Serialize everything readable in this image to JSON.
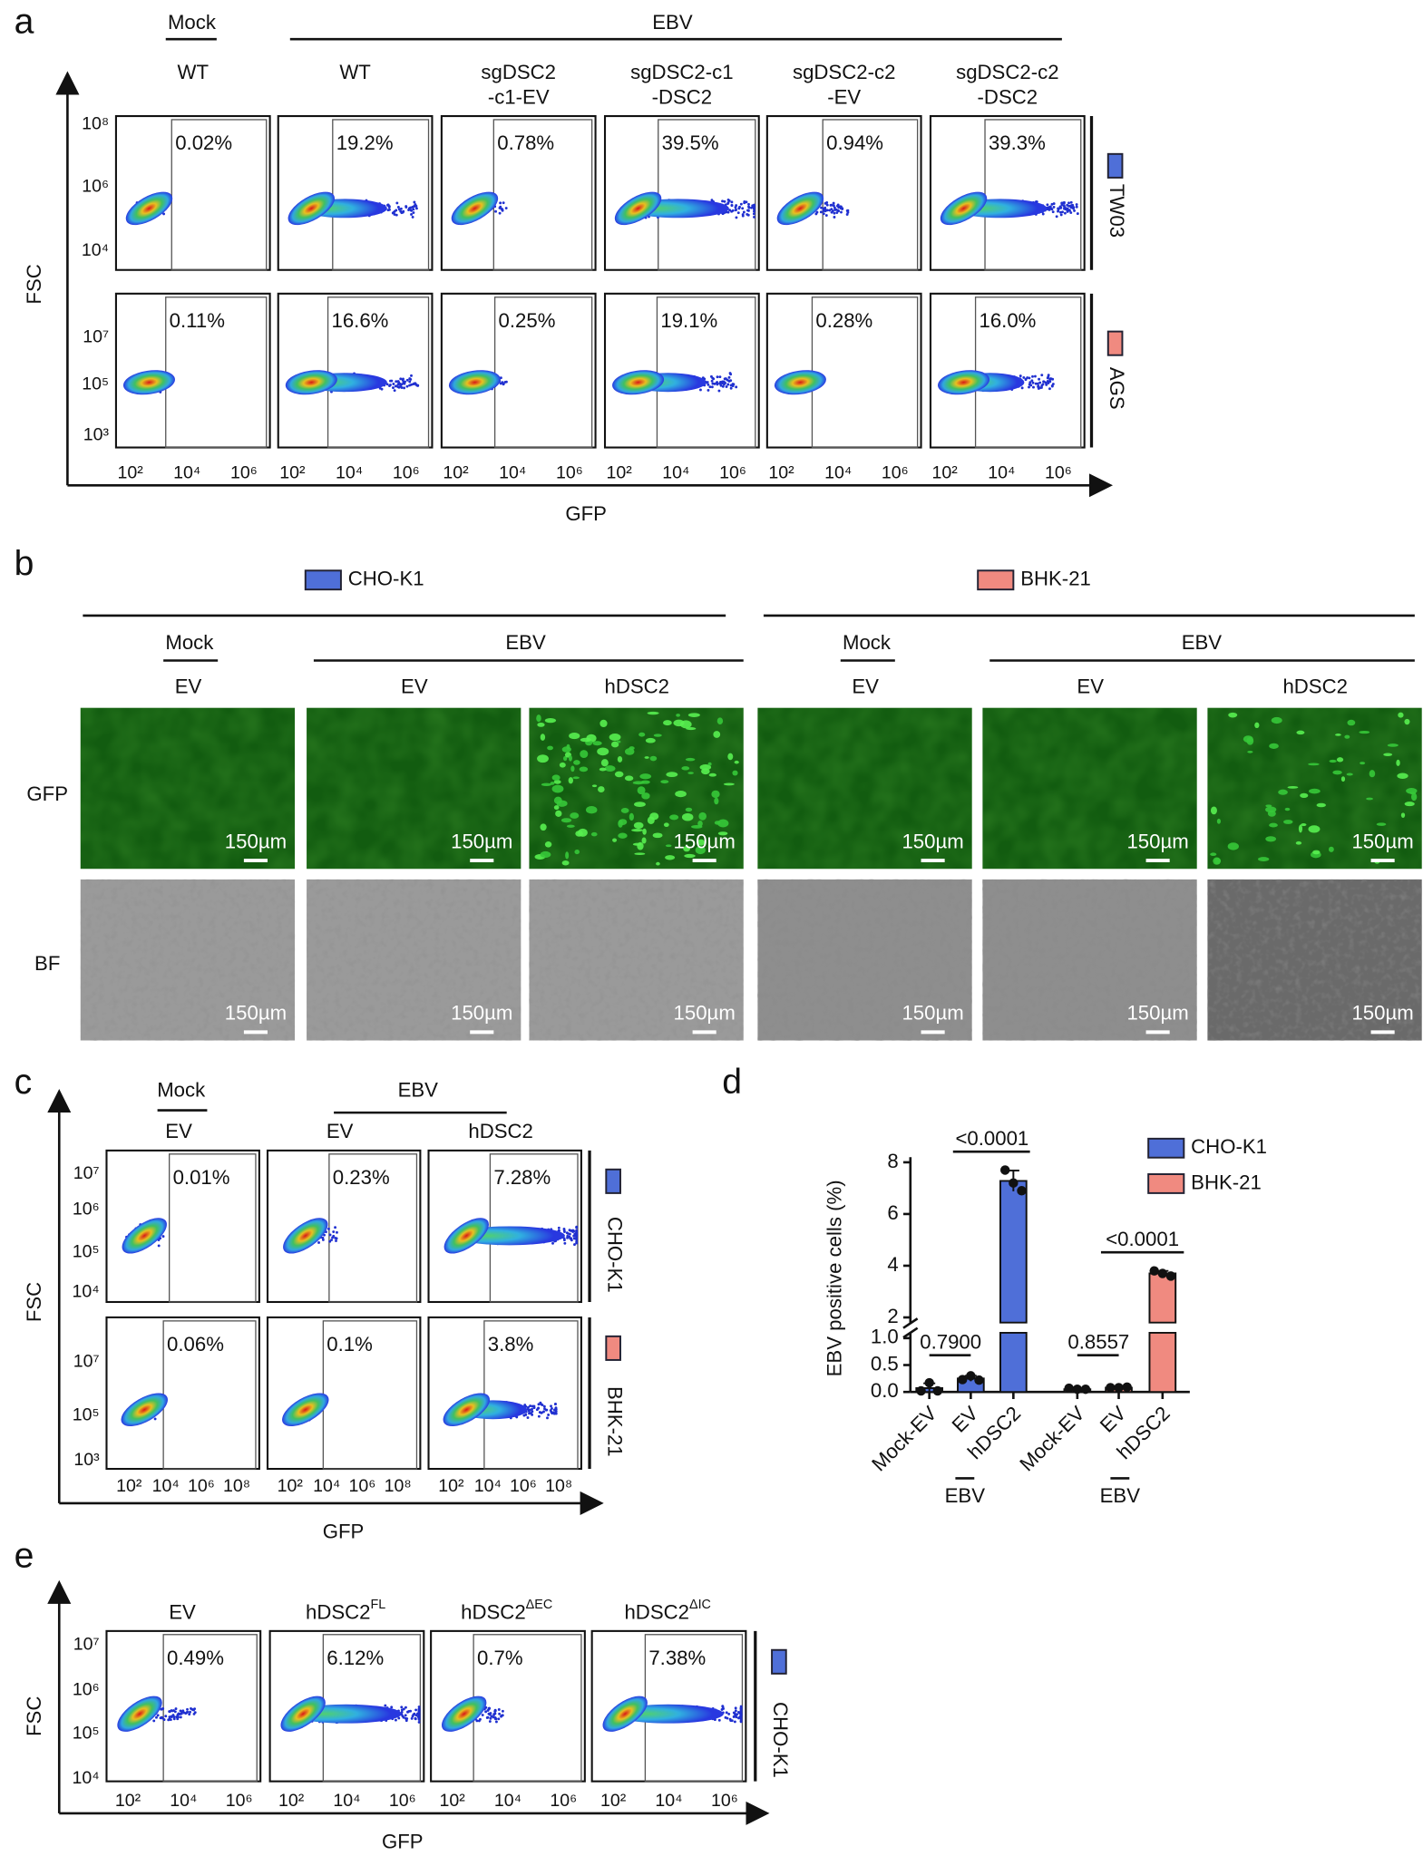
{
  "panel_a": {
    "label": "a",
    "mock": "Mock",
    "ebv": "EBV",
    "columns": [
      [
        "WT"
      ],
      [
        "WT"
      ],
      [
        "sgDSC2",
        "-c1-EV"
      ],
      [
        "sgDSC2-c1",
        "-DSC2"
      ],
      [
        "sgDSC2-c2",
        "-EV"
      ],
      [
        "sgDSC2-c2",
        "-DSC2"
      ]
    ],
    "rows": [
      {
        "name": "TW03",
        "color": "#4f6fd8",
        "yticks": [
          "10⁸",
          "10⁶",
          "10⁴"
        ],
        "percents": [
          "0.02%",
          "19.2%",
          "0.78%",
          "39.5%",
          "0.94%",
          "39.3%"
        ]
      },
      {
        "name": "AGS",
        "color": "#f08a80",
        "yticks": [
          "10⁷",
          "10⁵",
          "10³"
        ],
        "percents": [
          "0.11%",
          "16.6%",
          "0.25%",
          "19.1%",
          "0.28%",
          "16.0%"
        ]
      }
    ],
    "xticks": [
      "10²",
      "10⁴",
      "10⁶"
    ],
    "ylabel": "FSC",
    "xlabel": "GFP"
  },
  "panel_b": {
    "label": "b",
    "groups": [
      {
        "name": "CHO-K1",
        "color": "#4f6fd8",
        "mock": "Mock",
        "ebv": "EBV",
        "columns": [
          "EV",
          "EV",
          "hDSC2"
        ]
      },
      {
        "name": "BHK-21",
        "color": "#f08a80",
        "mock": "Mock",
        "ebv": "EBV",
        "columns": [
          "EV",
          "EV",
          "hDSC2"
        ]
      }
    ],
    "rows": [
      "GFP",
      "BF"
    ],
    "scale_bar": "150µm"
  },
  "panel_c": {
    "label": "c",
    "mock": "Mock",
    "ebv": "EBV",
    "columns": [
      "EV",
      "EV",
      "hDSC2"
    ],
    "rows": [
      {
        "name": "CHO-K1",
        "color": "#4f6fd8",
        "yticks": [
          "10⁷",
          "10⁶",
          "10⁵",
          "10⁴"
        ],
        "percents": [
          "0.01%",
          "0.23%",
          "7.28%"
        ]
      },
      {
        "name": "BHK-21",
        "color": "#f08a80",
        "yticks": [
          "10⁷",
          "10⁵",
          "10³"
        ],
        "percents": [
          "0.06%",
          "0.1%",
          "3.8%"
        ]
      }
    ],
    "xticks": [
      "10²",
      "10⁴",
      "10⁶",
      "10⁸"
    ],
    "ylabel": "FSC",
    "xlabel": "GFP"
  },
  "chart_data": {
    "label": "d",
    "type": "bar",
    "ylabel": "EBV positive cells (%)",
    "categories": [
      "Mock-EV",
      "EV",
      "hDSC2",
      "Mock-EV",
      "EV",
      "hDSC2"
    ],
    "group_label": "EBV",
    "segments": [
      {
        "ylim": [
          0,
          1.1
        ],
        "yticks": [
          {
            "value": 0,
            "label": "0.0"
          },
          0.5,
          {
            "value": 1,
            "label": "1.0"
          }
        ]
      },
      {
        "ylim": [
          1.8,
          8.2
        ],
        "yticks": [
          2,
          4,
          6,
          8
        ]
      }
    ],
    "series": [
      {
        "name": "CHO-K1",
        "color": "#4f6fd8",
        "values": [
          0.07,
          0.25,
          7.28,
          null,
          null,
          null
        ],
        "errors": [
          0.09,
          0.05,
          0.4,
          null,
          null,
          null
        ],
        "points": [
          [
            0.02,
            0.17,
            0.02
          ],
          [
            0.23,
            0.3,
            0.22
          ],
          [
            7.7,
            7.2,
            6.9
          ],
          null,
          null,
          null
        ]
      },
      {
        "name": "BHK-21",
        "color": "#f08a80",
        "values": [
          null,
          null,
          null,
          0.05,
          0.08,
          3.7
        ],
        "errors": [
          null,
          null,
          null,
          0.01,
          0.01,
          0.1
        ],
        "points": [
          null,
          null,
          null,
          [
            0.07,
            0.05,
            0.05
          ],
          [
            0.08,
            0.08,
            0.09
          ],
          [
            3.8,
            3.7,
            3.6
          ]
        ]
      }
    ],
    "annotations": [
      "0.7900",
      "<0.0001",
      "0.8557",
      "<0.0001"
    ]
  },
  "panel_e": {
    "label": "e",
    "columns": [
      {
        "text": "EV"
      },
      {
        "text": "hDSC2",
        "sup": "FL"
      },
      {
        "text": "hDSC2",
        "sup": "ΔEC"
      },
      {
        "text": "hDSC2",
        "sup": "ΔIC"
      }
    ],
    "rows": [
      {
        "name": "CHO-K1",
        "color": "#4f6fd8",
        "yticks": [
          "10⁷",
          "10⁶",
          "10⁵",
          "10⁴"
        ],
        "percents": [
          "0.49%",
          "6.12%",
          "0.7%",
          "7.38%"
        ]
      }
    ],
    "xticks": [
      "10²",
      "10⁴",
      "10⁶"
    ],
    "ylabel": "FSC",
    "xlabel": "GFP"
  }
}
